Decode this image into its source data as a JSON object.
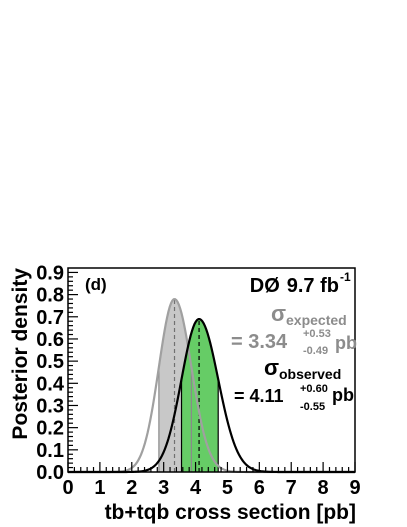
{
  "chart_data": {
    "type": "line",
    "panel_label": "(d)",
    "experiment": "DØ",
    "luminosity": "9.7 fb",
    "luminosity_exponent": "-1",
    "xlabel": "tb+tqb cross section [pb]",
    "ylabel": "Posterior density",
    "xlim": [
      0,
      9
    ],
    "ylim": [
      0,
      0.92
    ],
    "x_ticks": [
      "0",
      "1",
      "2",
      "3",
      "4",
      "5",
      "6",
      "7",
      "8",
      "9"
    ],
    "y_ticks": [
      "0.0",
      "0.1",
      "0.2",
      "0.3",
      "0.4",
      "0.5",
      "0.6",
      "0.7",
      "0.8",
      "0.9"
    ],
    "colors": {
      "expected_line": "#a0a0a0",
      "expected_fill": "#c8c8c8",
      "observed_line": "#000000",
      "observed_fill": "#66cc66"
    },
    "series": [
      {
        "label": "expected",
        "peak_x": 3.34,
        "peak_y": 0.78,
        "interval": [
          2.85,
          3.87
        ],
        "mean_line": 3.34
      },
      {
        "label": "observed",
        "peak_x": 4.11,
        "peak_y": 0.69,
        "interval": [
          3.56,
          4.71
        ],
        "mean_line": 4.11
      }
    ],
    "annotations": {
      "sigma": "σ",
      "expected_sub": "expected",
      "expected_value": "= 3.34",
      "expected_plus": "+0.53",
      "expected_minus": "-0.49",
      "observed_sub": "observed",
      "observed_value": "= 4.11",
      "observed_plus": "+0.60",
      "observed_minus": "-0.55",
      "unit": "pb"
    }
  }
}
